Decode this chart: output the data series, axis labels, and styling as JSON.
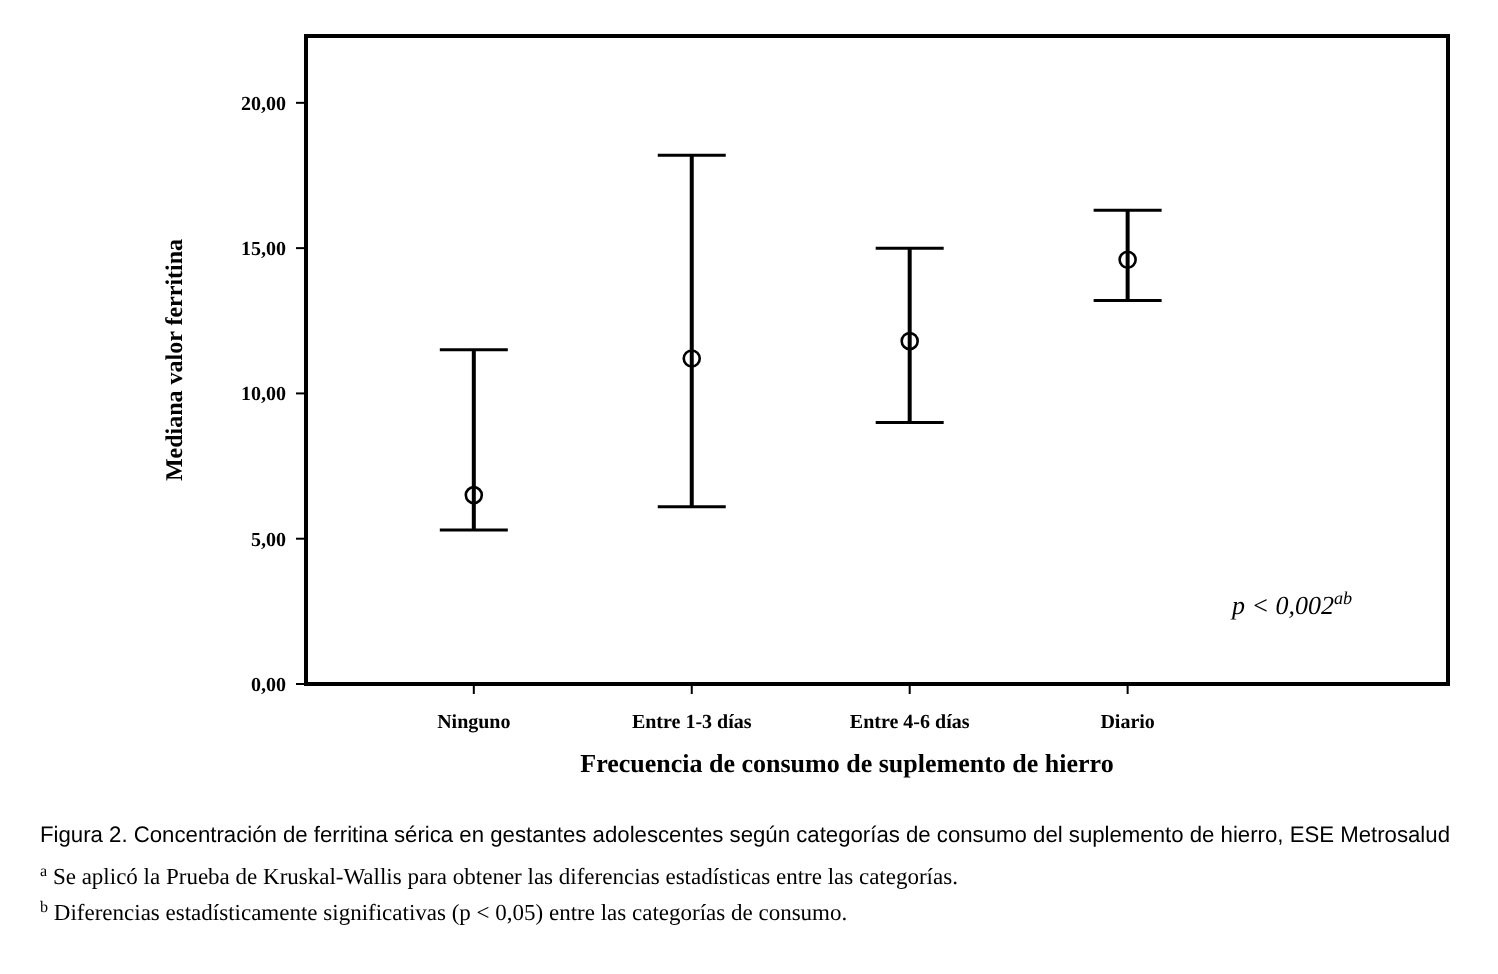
{
  "chart_data": {
    "type": "scatter",
    "xlabel": "Frecuencia de consumo de suplemento de hierro",
    "ylabel": "Mediana valor ferritina",
    "categories": [
      "Ninguno",
      "Entre 1-3 días",
      "Entre 4-6 días",
      "Diario"
    ],
    "values": [
      6.5,
      11.2,
      11.8,
      14.6
    ],
    "errors": [
      [
        5.3,
        11.5
      ],
      [
        6.1,
        18.2
      ],
      [
        9.0,
        15.0
      ],
      [
        13.2,
        16.3
      ]
    ],
    "color": "#000000",
    "marker": "circle",
    "grid": false,
    "ylim": [
      0,
      22.3
    ],
    "yticks": [
      {
        "value": 0,
        "label": "0,00"
      },
      {
        "value": 5,
        "label": "5,00"
      },
      {
        "value": 10,
        "label": "10,00"
      },
      {
        "value": 15,
        "label": "15,00"
      },
      {
        "value": 20,
        "label": "20,00"
      }
    ],
    "annotations": [
      "p < 0,002$^{ab}$",
      "Figura 2. Concentración de ferritina sérica en gestantes adolescentes según categorías de consumo del suplemento de hierro, ESE Metrosalud",
      "$^{a}$ Se aplicó la Prueba de Kruskal-Wallis para obtener las diferencias estadísticas entre las categorías.",
      "$^{b}$ Diferencias estadísticamente significativas (p < 0,05) entre las categorías de consumo."
    ]
  }
}
